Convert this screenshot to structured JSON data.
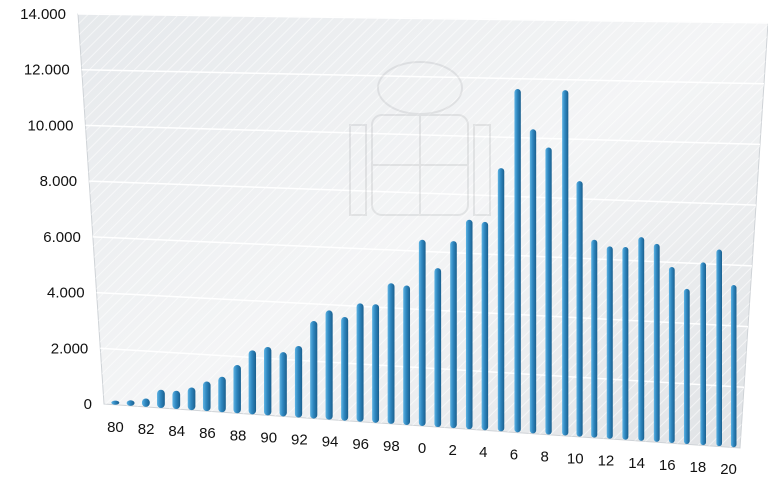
{
  "chart_data": {
    "type": "bar",
    "categories": [
      "80",
      "81",
      "82",
      "83",
      "84",
      "85",
      "86",
      "87",
      "88",
      "89",
      "90",
      "91",
      "92",
      "93",
      "94",
      "95",
      "96",
      "97",
      "98",
      "99",
      "0",
      "1",
      "2",
      "3",
      "4",
      "5",
      "6",
      "7",
      "8",
      "9",
      "10",
      "11",
      "12",
      "13",
      "14",
      "15",
      "16",
      "17",
      "18",
      "19",
      "20"
    ],
    "x_tick_labels": [
      "80",
      "82",
      "84",
      "86",
      "88",
      "90",
      "92",
      "94",
      "96",
      "98",
      "0",
      "2",
      "4",
      "6",
      "8",
      "10",
      "12",
      "14",
      "16",
      "18",
      "20"
    ],
    "values": [
      150,
      200,
      300,
      650,
      650,
      800,
      1050,
      1250,
      1700,
      2250,
      2400,
      2250,
      2500,
      3400,
      3800,
      3600,
      4100,
      4100,
      4850,
      4800,
      6400,
      5450,
      6400,
      7150,
      7100,
      8950,
      11650,
      10300,
      9700,
      11650,
      8600,
      6650,
      6450,
      6450,
      6800,
      6600,
      5850,
      5150,
      6050,
      6500,
      5350
    ],
    "y_ticks": [
      "0",
      "2.000",
      "4.000",
      "6.000",
      "8.000",
      "10.000",
      "12.000",
      "14.000"
    ],
    "ylim": [
      0,
      14000
    ],
    "grid": true,
    "bar_color": "#2e86bf"
  }
}
